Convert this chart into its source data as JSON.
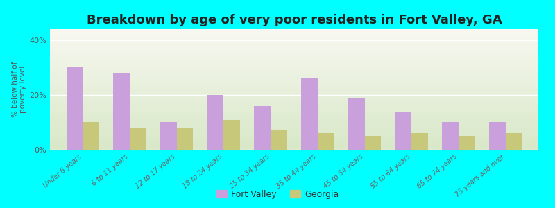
{
  "title": "Breakdown by age of very poor residents in Fort Valley, GA",
  "categories": [
    "Under 6 years",
    "6 to 11 years",
    "12 to 17 years",
    "18 to 24 years",
    "25 to 34 years",
    "35 to 44 years",
    "45 to 54 years",
    "55 to 64 years",
    "65 to 74 years",
    "75 years and over"
  ],
  "fort_valley_values": [
    30,
    28,
    10,
    20,
    16,
    26,
    19,
    14,
    10,
    10
  ],
  "georgia_values": [
    10,
    8,
    8,
    11,
    7,
    6,
    5,
    6,
    5,
    6
  ],
  "fort_valley_color": "#c9a0dc",
  "georgia_color": "#c8c87a",
  "ylabel": "% below half of\npoverty level",
  "ylim": [
    0,
    44
  ],
  "yticks": [
    0,
    20,
    40
  ],
  "ytick_labels": [
    "0%",
    "20%",
    "40%"
  ],
  "background_color": "#00ffff",
  "legend_fort_valley": "Fort Valley",
  "legend_georgia": "Georgia",
  "title_fontsize": 13,
  "bar_width": 0.35
}
